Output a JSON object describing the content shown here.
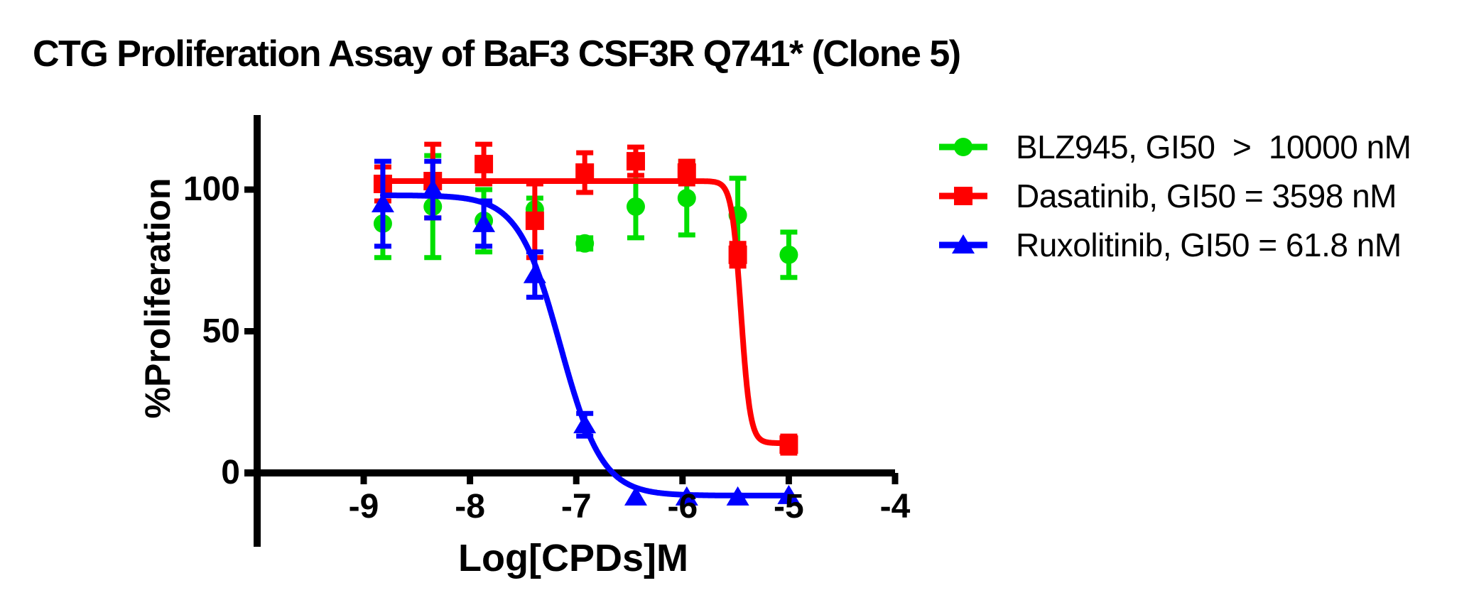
{
  "title": "CTG Proliferation Assay of BaF3 CSF3R Q741* (Clone 5)",
  "chart_data": {
    "type": "scatter",
    "title": "CTG Proliferation Assay of BaF3 CSF3R Q741* (Clone 5)",
    "xlabel": "Log[CPDs]M",
    "ylabel": "%Proliferation",
    "x_ticks": [
      -9,
      -8,
      -7,
      -6,
      -5,
      -4
    ],
    "y_ticks": [
      0,
      50,
      100
    ],
    "xlim": [
      -10,
      -4
    ],
    "ylim": [
      -26,
      126
    ],
    "grid": false,
    "legend_position": "right",
    "axis_color": "#000000",
    "series": [
      {
        "name": "BLZ945",
        "legend_label": "BLZ945, GI50  >  10000 nM",
        "gi50_text": "GI50 > 10000 nM",
        "color": "#00df00",
        "marker": "circle",
        "x": [
          -8.82,
          -8.35,
          -7.87,
          -7.39,
          -6.92,
          -6.44,
          -5.96,
          -5.48,
          -5.0
        ],
        "y": [
          88,
          94,
          89,
          93,
          81,
          94,
          97,
          91,
          77
        ],
        "err": [
          12,
          18,
          11,
          4,
          2,
          11,
          13,
          13,
          8
        ],
        "fit": null
      },
      {
        "name": "Dasatinib",
        "legend_label": "Dasatinib, GI50 = 3598 nM",
        "gi50_text": "GI50 = 3598 nM",
        "color": "#ff0000",
        "marker": "square",
        "x": [
          -8.82,
          -8.35,
          -7.87,
          -7.39,
          -6.92,
          -6.44,
          -5.96,
          -5.48,
          -5.0
        ],
        "y": [
          102,
          103,
          109,
          89,
          106,
          110,
          106,
          77,
          10
        ],
        "err": [
          6,
          13,
          7,
          13,
          7,
          5,
          4,
          4,
          3
        ],
        "fit": {
          "top": 103,
          "bottom": 10.5,
          "log_ec50": -5.45,
          "hill": 10
        }
      },
      {
        "name": "Ruxolitinib",
        "legend_label": "Ruxolitinib, GI50 = 61.8 nM",
        "gi50_text": "GI50 = 61.8 nM",
        "color": "#0000ff",
        "marker": "triangle",
        "x": [
          -8.82,
          -8.35,
          -7.87,
          -7.39,
          -6.92,
          -6.44,
          -5.96,
          -5.48,
          -5.0
        ],
        "y": [
          95,
          100,
          88,
          70,
          17,
          -8.5,
          -8.5,
          -8.5,
          -8
        ],
        "err": [
          15,
          10,
          8,
          8,
          4,
          0,
          0,
          0,
          0
        ],
        "fit": {
          "top": 98,
          "bottom": -8,
          "log_ec50": -7.15,
          "hill": 2.2
        }
      }
    ]
  }
}
